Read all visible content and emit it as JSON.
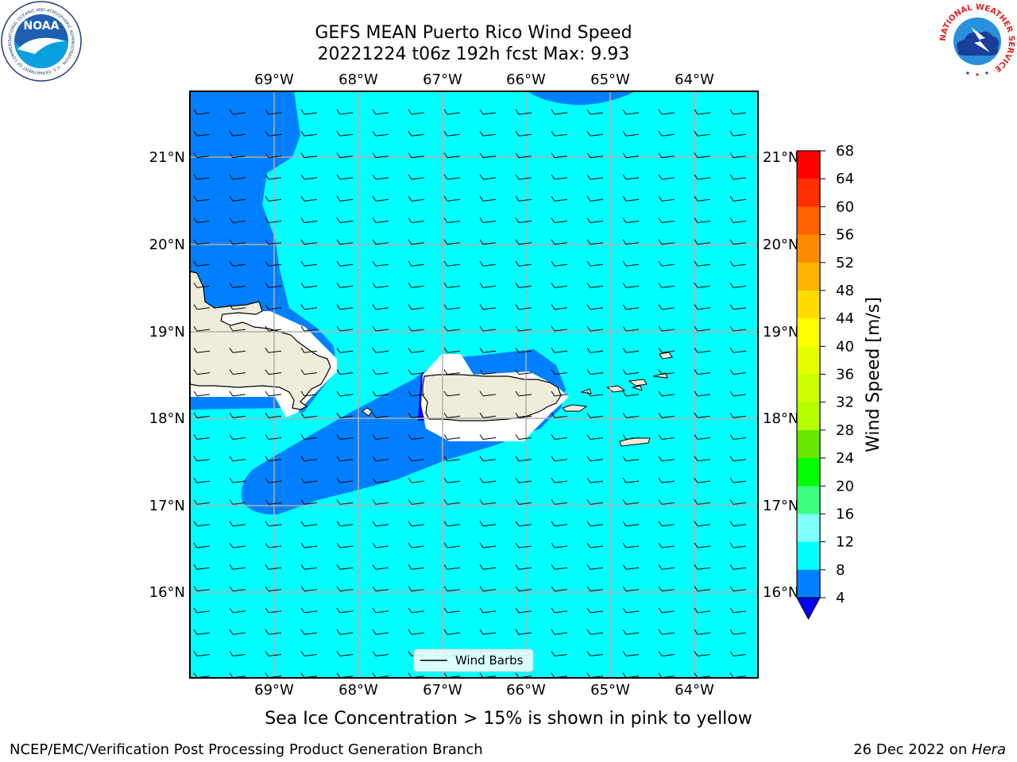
{
  "title": {
    "line1": "GEFS MEAN Puerto Rico Wind Speed",
    "line2": "20221224 t06z 192h fcst   Max: 9.93"
  },
  "map": {
    "lon_labels": [
      "69°W",
      "68°W",
      "67°W",
      "66°W",
      "65°W",
      "64°W"
    ],
    "lat_labels": [
      "21°N",
      "20°N",
      "19°N",
      "18°N",
      "17°N",
      "16°N"
    ],
    "colors": {
      "ocean_cyan": "#00ffff",
      "band_blue": "#0080ff",
      "deep_blue": "#0000ff",
      "land": "#efedda",
      "gridline": "#b0b0b0"
    },
    "legend_label": "Wind Barbs"
  },
  "colorbar": {
    "label": "Wind Speed [m/s]",
    "ticks": [
      "68",
      "64",
      "60",
      "56",
      "52",
      "48",
      "44",
      "40",
      "36",
      "32",
      "28",
      "24",
      "20",
      "16",
      "12",
      "8",
      "4"
    ],
    "colors": [
      "#ff0000",
      "#ff3000",
      "#ff6000",
      "#ff8c00",
      "#ffb400",
      "#ffdc00",
      "#ffff00",
      "#e6ff00",
      "#ccff00",
      "#b4ff00",
      "#66e600",
      "#00ff00",
      "#40ff80",
      "#80ffff",
      "#00ffff",
      "#0080ff"
    ],
    "extend_color": "#0000ff"
  },
  "footer": {
    "sea_ice_note": "Sea Ice Concentration > 15% is shown in pink to yellow",
    "branch": "NCEP/EMC/Verification Post Processing Product Generation Branch",
    "date": "26 Dec 2022 on ",
    "machine": "Hera"
  },
  "logos": {
    "left_icon": "noaa-logo-icon",
    "left_text": "NOAA",
    "left_ring_text": "NATIONAL OCEANIC AND ATMOSPHERIC ADMINISTRATION · U.S. DEPARTMENT OF COMMERCE",
    "right_icon": "nws-logo-icon",
    "right_ring_text": "NATIONAL WEATHER SERVICE"
  }
}
